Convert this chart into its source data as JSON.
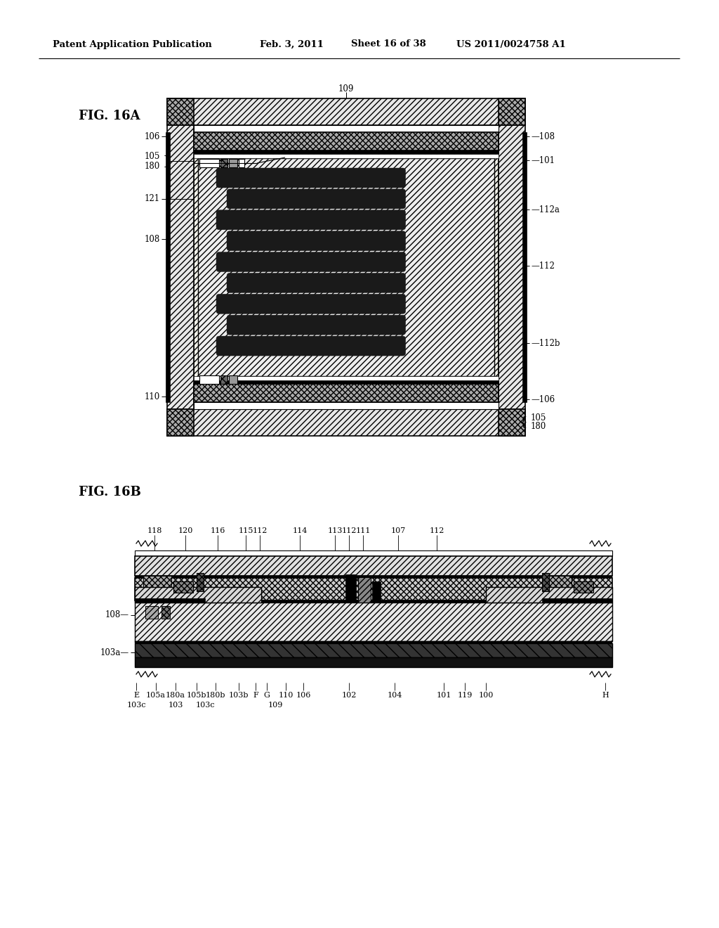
{
  "bg_color": "#ffffff",
  "fig16a_label": "FIG. 16A",
  "fig16b_label": "FIG. 16B",
  "header1": "Patent Application Publication",
  "header2": "Feb. 3, 2011",
  "header3": "Sheet 16 of 38",
  "header4": "US 2011/0024758 A1"
}
